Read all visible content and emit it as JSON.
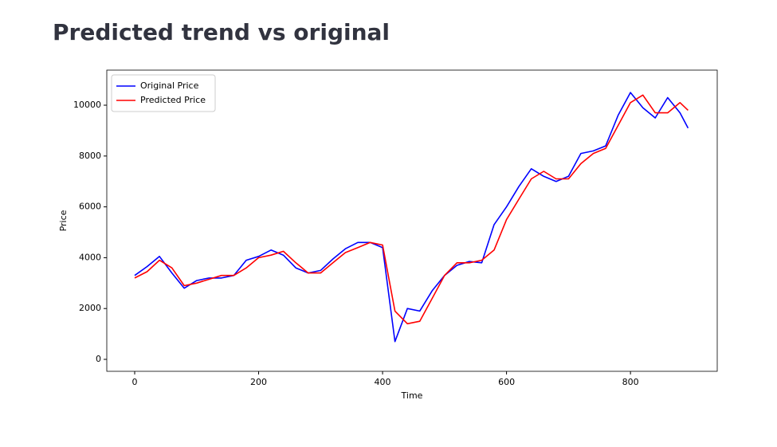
{
  "chart_data": {
    "type": "line",
    "title": "Predicted trend vs original",
    "xlabel": "Time",
    "ylabel": "Price",
    "x": [
      0,
      20,
      40,
      60,
      80,
      100,
      120,
      140,
      160,
      180,
      200,
      220,
      240,
      260,
      280,
      300,
      320,
      340,
      360,
      380,
      400,
      420,
      440,
      460,
      480,
      500,
      520,
      540,
      560,
      580,
      600,
      620,
      640,
      660,
      680,
      700,
      720,
      740,
      760,
      780,
      800,
      820,
      840,
      860,
      880,
      893
    ],
    "series": [
      {
        "name": "Original Price",
        "color": "#0000ff",
        "values": [
          3300,
          3650,
          4050,
          3400,
          2800,
          3100,
          3200,
          3200,
          3300,
          3900,
          4050,
          4300,
          4100,
          3600,
          3400,
          3500,
          3950,
          4350,
          4600,
          4600,
          4400,
          700,
          2000,
          1900,
          2700,
          3300,
          3700,
          3850,
          3800,
          5300,
          6000,
          6800,
          7500,
          7200,
          7000,
          7200,
          8100,
          8200,
          8400,
          9600,
          10500,
          9900,
          9500,
          10300,
          9700,
          9100
        ]
      },
      {
        "name": "Predicted Price",
        "color": "#ff0000",
        "values": [
          3200,
          3450,
          3900,
          3600,
          2900,
          3000,
          3150,
          3300,
          3300,
          3600,
          4000,
          4100,
          4250,
          3800,
          3400,
          3400,
          3800,
          4200,
          4400,
          4600,
          4500,
          1900,
          1400,
          1500,
          2400,
          3300,
          3800,
          3800,
          3900,
          4300,
          5500,
          6300,
          7100,
          7400,
          7100,
          7100,
          7700,
          8100,
          8300,
          9200,
          10100,
          10400,
          9700,
          9700,
          10100,
          9800
        ]
      }
    ],
    "xlim": [
      -45,
      940
    ],
    "xticks": [
      0,
      200,
      400,
      600,
      800
    ],
    "ylim": [
      -470,
      11380
    ],
    "yticks": [
      0,
      2000,
      4000,
      6000,
      8000,
      10000
    ],
    "legend": "upper left",
    "grid": false
  }
}
